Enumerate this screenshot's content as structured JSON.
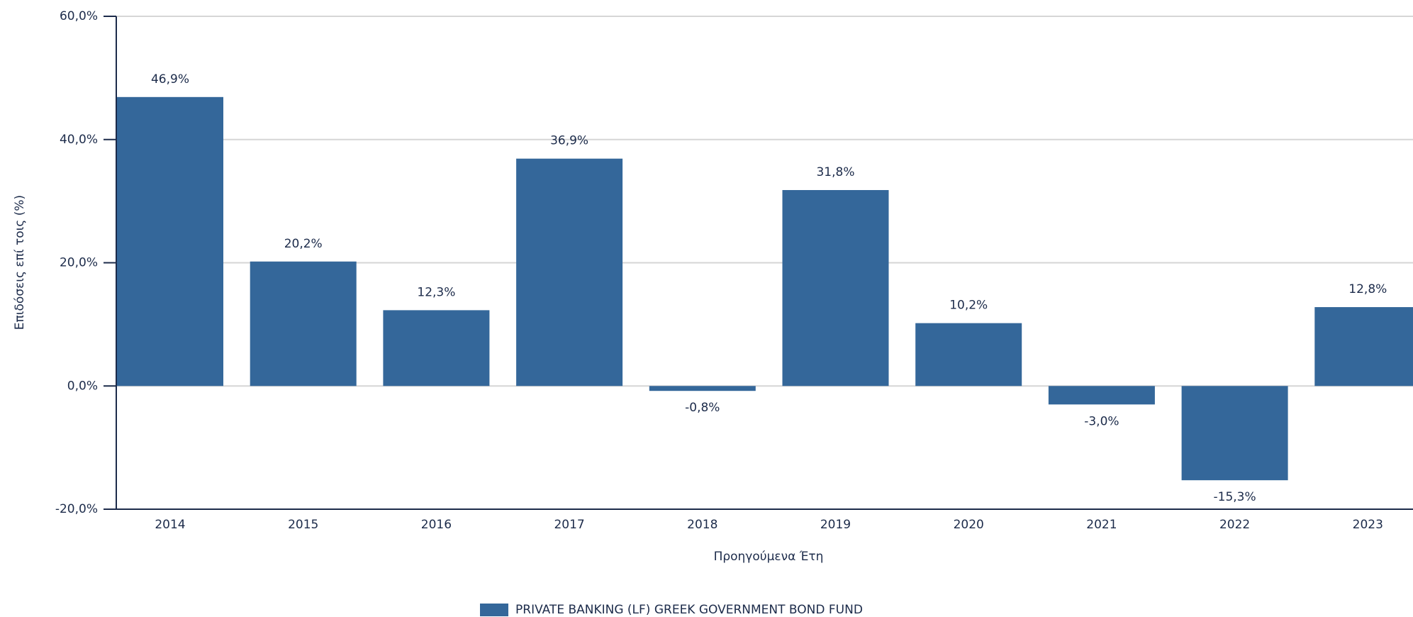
{
  "chart_data": {
    "type": "bar",
    "ylabel": "Επιδόσεις επί τοις (%)",
    "xlabel": "Προηγούμενα Έτη",
    "categories": [
      "2014",
      "2015",
      "2016",
      "2017",
      "2018",
      "2019",
      "2020",
      "2021",
      "2022",
      "2023"
    ],
    "series": [
      {
        "name": "PRIVATE BANKING (LF) GREEK GOVERNMENT BOND FUND",
        "color": "#34679a",
        "values": [
          46.9,
          20.2,
          12.3,
          36.9,
          -0.8,
          31.8,
          10.2,
          -3.0,
          -15.3,
          12.8
        ],
        "value_labels": [
          "46,9%",
          "20,2%",
          "12,3%",
          "36,9%",
          "-0,8%",
          "31,8%",
          "10,2%",
          "-3,0%",
          "-15,3%",
          "12,8%"
        ]
      }
    ],
    "ylim": [
      -20,
      60
    ],
    "yticks": [
      {
        "value": -20,
        "label": "-20,0%"
      },
      {
        "value": 0,
        "label": "0,0%"
      },
      {
        "value": 20,
        "label": "20,0%"
      },
      {
        "value": 40,
        "label": "40,0%"
      },
      {
        "value": 60,
        "label": "60,0%"
      }
    ],
    "grid": true
  }
}
